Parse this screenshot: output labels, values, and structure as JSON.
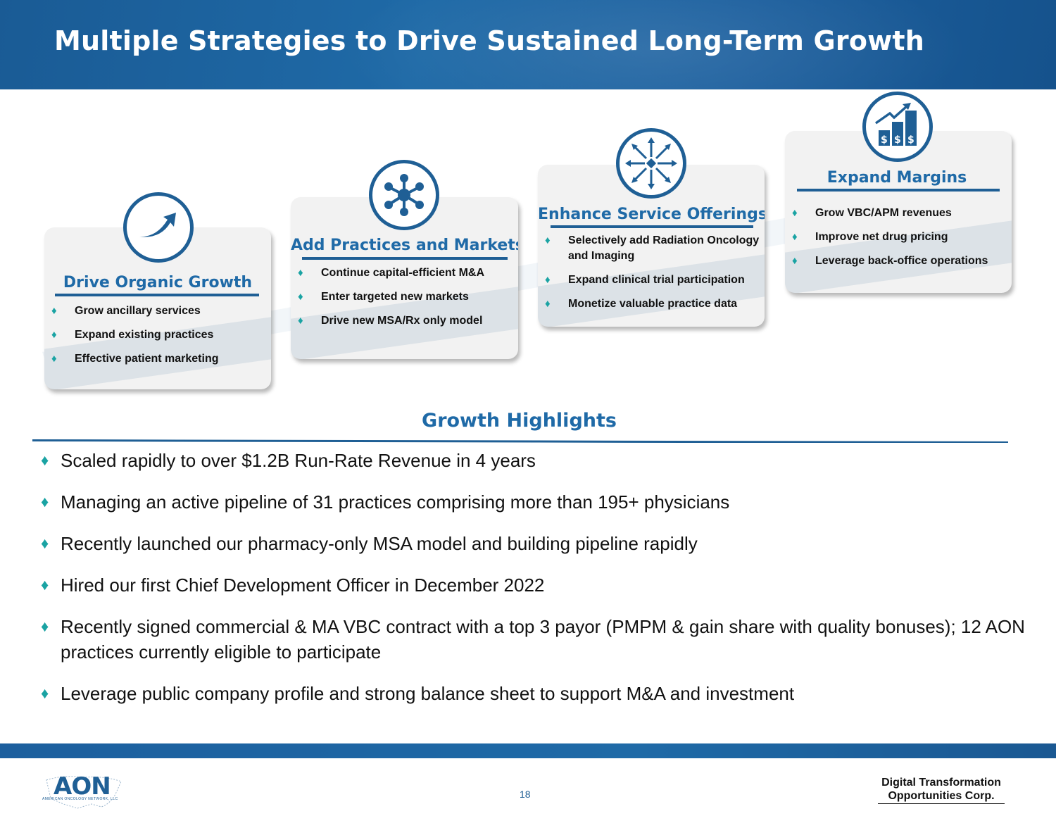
{
  "header": {
    "title": "Multiple Strategies to Drive Sustained Long-Term Growth"
  },
  "strategies": [
    {
      "title": "Drive Organic Growth",
      "icon": "arrow-up-right-icon",
      "bullets": [
        "Grow ancillary services",
        "Expand existing practices",
        "Effective patient marketing"
      ]
    },
    {
      "title": "Add Practices and Markets",
      "icon": "network-hub-icon",
      "bullets": [
        "Continue capital-efficient M&A",
        "Enter targeted new markets",
        "Drive new MSA/Rx only model"
      ]
    },
    {
      "title": "Enhance Service Offerings",
      "icon": "radiating-arrows-icon",
      "bullets": [
        "Selectively add Radiation Oncology and Imaging",
        "Expand clinical trial participation",
        "Monetize valuable practice data"
      ]
    },
    {
      "title": "Expand Margins",
      "icon": "dollar-bar-chart-icon",
      "bullets": [
        "Grow VBC/APM revenues",
        "Improve net drug pricing",
        "Leverage back-office operations"
      ]
    }
  ],
  "growth_highlights": {
    "title": "Growth Highlights",
    "items": [
      "Scaled rapidly to over $1.2B Run-Rate Revenue in 4 years",
      "Managing an active pipeline of 31 practices comprising more than 195+ physicians",
      "Recently launched our pharmacy-only MSA model and building pipeline rapidly",
      "Hired our first Chief Development Officer in December 2022",
      "Recently signed commercial & MA VBC contract with a top 3 payor (PMPM & gain share with quality bonuses); 12 AON practices currently eligible to participate",
      "Leverage public company profile and strong balance sheet to support M&A and investment"
    ]
  },
  "footer": {
    "logo_text": "AON",
    "logo_subtext": "AMERICAN ONCOLOGY NETWORK, LLC",
    "page_number": "18",
    "company_line1": "Digital Transformation",
    "company_line2": "Opportunities Corp."
  },
  "colors": {
    "primary_blue": "#1f6aa7",
    "dark_blue": "#1f5f95",
    "bullet_teal": "#1aa3a3",
    "card_bg": "#f2f2f2"
  },
  "bullet_glyph": "♦"
}
